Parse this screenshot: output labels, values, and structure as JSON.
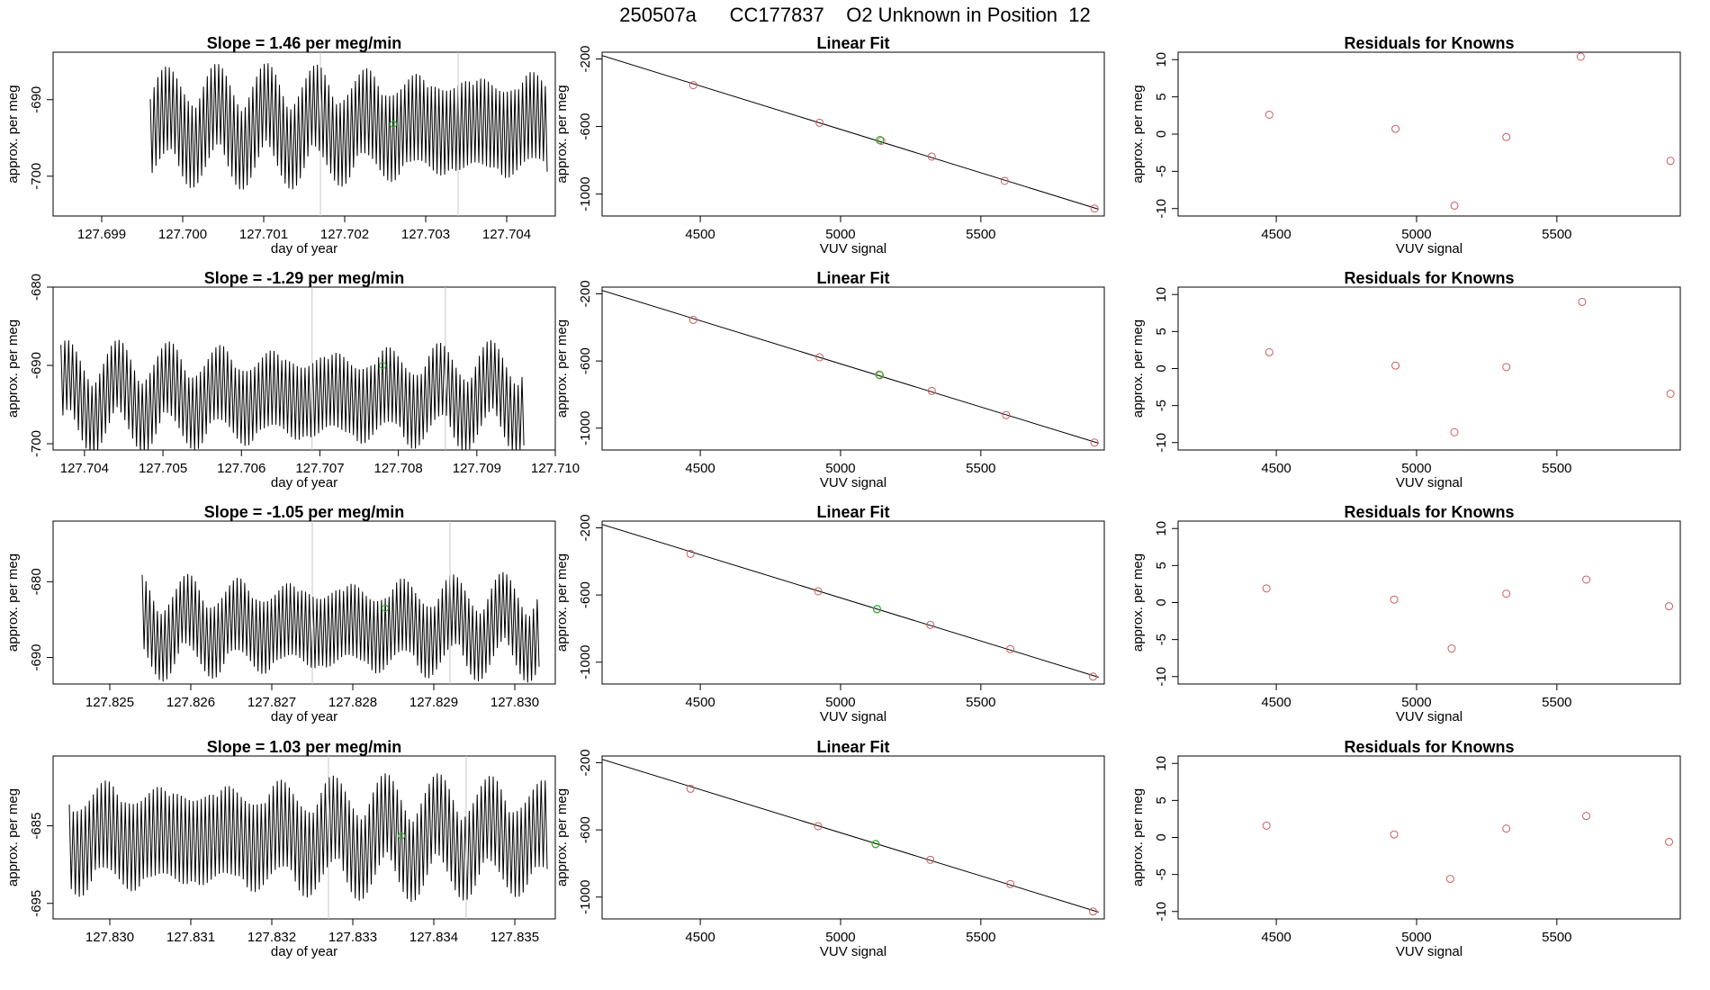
{
  "page": {
    "title": "250507a      CC177837    O2 Unknown in Position  12"
  },
  "colors": {
    "trace": "#000000",
    "unknown_point": "#2db52d",
    "known_point": "#cd5c5c",
    "fit_line": "#000000",
    "vline": "#c8c8c8"
  },
  "chart_data": [
    {
      "type": "line",
      "title": "Slope =  1.46  per meg/min",
      "xlabel": "day of year",
      "ylabel": "approx. per meg",
      "xlim": [
        127.6984,
        127.7046
      ],
      "ylim": [
        -705.2,
        -683.8
      ],
      "xticks": [
        127.699,
        127.7,
        127.701,
        127.702,
        127.703,
        127.704
      ],
      "xticklabels": [
        "127.699",
        "127.700",
        "127.701",
        "127.702",
        "127.703",
        "127.704"
      ],
      "yticks": [
        -700,
        -690
      ],
      "yticklabels": [
        "-700",
        "-690"
      ],
      "x_start": 127.6996,
      "x_end": 127.7045,
      "n": 210,
      "center": -693.5,
      "amp": 6.5,
      "vlines": [
        127.7017,
        127.7034
      ],
      "mean_point": [
        127.7026,
        -693.2
      ]
    },
    {
      "type": "line",
      "title": "Slope =  -1.29  per meg/min",
      "xlabel": "day of year",
      "ylabel": "approx. per meg",
      "xlim": [
        127.7036,
        127.71
      ],
      "ylim": [
        -700.8,
        -680.0
      ],
      "xticks": [
        127.704,
        127.705,
        127.706,
        127.707,
        127.708,
        127.709,
        127.71
      ],
      "xticklabels": [
        "127.704",
        "127.705",
        "127.706",
        "127.707",
        "127.708",
        "127.709",
        "127.710"
      ],
      "yticks": [
        -700,
        -690,
        -680
      ],
      "yticklabels": [
        "-700",
        "-690",
        "-680"
      ],
      "x_start": 127.7037,
      "x_end": 127.7096,
      "n": 240,
      "center": -694.0,
      "amp": 5.5,
      "vlines": [
        127.7069,
        127.7086
      ],
      "mean_point": [
        127.7078,
        -690.0
      ]
    },
    {
      "type": "line",
      "title": "Slope =  -1.05  per meg/min",
      "xlabel": "day of year",
      "ylabel": "approx. per meg",
      "xlim": [
        127.8243,
        127.8305
      ],
      "ylim": [
        -693.5,
        -672.0
      ],
      "xticks": [
        127.825,
        127.826,
        127.827,
        127.828,
        127.829,
        127.83
      ],
      "xticklabels": [
        "127.825",
        "127.826",
        "127.827",
        "127.828",
        "127.829",
        "127.830"
      ],
      "yticks": [
        -690,
        -680
      ],
      "yticklabels": [
        "-690",
        "-680"
      ],
      "x_start": 127.8254,
      "x_end": 127.8303,
      "n": 210,
      "center": -686.0,
      "amp": 5.5,
      "vlines": [
        127.8275,
        127.8292
      ],
      "mean_point": [
        127.8284,
        -683.5
      ]
    },
    {
      "type": "line",
      "title": "Slope =  1.03  per meg/min",
      "xlabel": "day of year",
      "ylabel": "approx. per meg",
      "xlim": [
        127.8293,
        127.8355
      ],
      "ylim": [
        -697.0,
        -676.0
      ],
      "xticks": [
        127.83,
        127.831,
        127.832,
        127.833,
        127.834,
        127.835
      ],
      "xticklabels": [
        "127.830",
        "127.831",
        "127.832",
        "127.833",
        "127.834",
        "127.835"
      ],
      "yticks": [
        -695,
        -685
      ],
      "yticklabels": [
        "-695",
        "-685"
      ],
      "x_start": 127.8295,
      "x_end": 127.8354,
      "n": 240,
      "center": -686.5,
      "amp": 6.5,
      "vlines": [
        127.8327,
        127.8344
      ],
      "mean_point": [
        127.8336,
        -686.3
      ]
    },
    {
      "type": "scatter",
      "title": "Linear Fit",
      "xlabel": "VUV signal",
      "ylabel": "approx. per meg",
      "xlim": [
        4150,
        5940
      ],
      "ylim": [
        -1130,
        -160
      ],
      "xticks": [
        4500,
        5000,
        5500
      ],
      "xticklabels": [
        "4500",
        "5000",
        "5500"
      ],
      "yticks": [
        -1000,
        -600,
        -200
      ],
      "yticklabels": [
        "-1000",
        "-600",
        "-200"
      ],
      "line": [
        [
          4150,
          -180
        ],
        [
          5920,
          -1090
        ]
      ],
      "knowns": [
        [
          4475,
          -355
        ],
        [
          4925,
          -578
        ],
        [
          5145,
          -685
        ],
        [
          5325,
          -778
        ],
        [
          5585,
          -922
        ],
        [
          5905,
          -1086
        ]
      ],
      "unknown": [
        5140,
        -680
      ]
    },
    {
      "type": "scatter",
      "title": "Linear Fit",
      "xlabel": "VUV signal",
      "ylabel": "approx. per meg",
      "xlim": [
        4150,
        5940
      ],
      "ylim": [
        -1130,
        -160
      ],
      "xticks": [
        4500,
        5000,
        5500
      ],
      "xticklabels": [
        "4500",
        "5000",
        "5500"
      ],
      "yticks": [
        -1000,
        -600,
        -200
      ],
      "yticklabels": [
        "-1000",
        "-600",
        "-200"
      ],
      "line": [
        [
          4150,
          -180
        ],
        [
          5920,
          -1090
        ]
      ],
      "knowns": [
        [
          4475,
          -355
        ],
        [
          4925,
          -578
        ],
        [
          5140,
          -685
        ],
        [
          5325,
          -778
        ],
        [
          5590,
          -922
        ],
        [
          5905,
          -1086
        ]
      ],
      "unknown": [
        5138,
        -682
      ]
    },
    {
      "type": "scatter",
      "title": "Linear Fit",
      "xlabel": "VUV signal",
      "ylabel": "approx. per meg",
      "xlim": [
        4150,
        5940
      ],
      "ylim": [
        -1130,
        -160
      ],
      "xticks": [
        4500,
        5000,
        5500
      ],
      "xticklabels": [
        "4500",
        "5000",
        "5500"
      ],
      "yticks": [
        -1000,
        -600,
        -200
      ],
      "yticklabels": [
        "-1000",
        "-600",
        "-200"
      ],
      "line": [
        [
          4150,
          -180
        ],
        [
          5920,
          -1090
        ]
      ],
      "knowns": [
        [
          4465,
          -355
        ],
        [
          4920,
          -578
        ],
        [
          5130,
          -685
        ],
        [
          5320,
          -778
        ],
        [
          5605,
          -922
        ],
        [
          5900,
          -1086
        ]
      ],
      "unknown": [
        5130,
        -684
      ]
    },
    {
      "type": "scatter",
      "title": "Linear Fit",
      "xlabel": "VUV signal",
      "ylabel": "approx. per meg",
      "xlim": [
        4150,
        5940
      ],
      "ylim": [
        -1130,
        -160
      ],
      "xticks": [
        4500,
        5000,
        5500
      ],
      "xticklabels": [
        "4500",
        "5000",
        "5500"
      ],
      "yticks": [
        -1000,
        -600,
        -200
      ],
      "yticklabels": [
        "-1000",
        "-600",
        "-200"
      ],
      "line": [
        [
          4150,
          -180
        ],
        [
          5920,
          -1090
        ]
      ],
      "knowns": [
        [
          4465,
          -355
        ],
        [
          4920,
          -578
        ],
        [
          5125,
          -685
        ],
        [
          5320,
          -778
        ],
        [
          5605,
          -922
        ],
        [
          5900,
          -1086
        ]
      ],
      "unknown": [
        5125,
        -684
      ]
    },
    {
      "type": "scatter",
      "title": "Residuals for Knowns",
      "xlabel": "VUV signal",
      "ylabel": "approx. per meg",
      "xlim": [
        4150,
        5940
      ],
      "ylim": [
        -11,
        11
      ],
      "xticks": [
        4500,
        5000,
        5500
      ],
      "xticklabels": [
        "4500",
        "5000",
        "5500"
      ],
      "yticks": [
        -10,
        -5,
        0,
        5,
        10
      ],
      "yticklabels": [
        "-10",
        "-5",
        "0",
        "5",
        "10"
      ],
      "x": [
        4475,
        4925,
        5135,
        5320,
        5585,
        5905
      ],
      "y": [
        2.6,
        0.7,
        -9.6,
        -0.4,
        10.4,
        -3.6
      ]
    },
    {
      "type": "scatter",
      "title": "Residuals for Knowns",
      "xlabel": "VUV signal",
      "ylabel": "approx. per meg",
      "xlim": [
        4150,
        5940
      ],
      "ylim": [
        -11,
        11
      ],
      "xticks": [
        4500,
        5000,
        5500
      ],
      "xticklabels": [
        "4500",
        "5000",
        "5500"
      ],
      "yticks": [
        -10,
        -5,
        0,
        5,
        10
      ],
      "yticklabels": [
        "-10",
        "-5",
        "0",
        "5",
        "10"
      ],
      "x": [
        4475,
        4925,
        5135,
        5320,
        5590,
        5905
      ],
      "y": [
        2.2,
        0.4,
        -8.6,
        0.2,
        9.0,
        -3.4
      ]
    },
    {
      "type": "scatter",
      "title": "Residuals for Knowns",
      "xlabel": "VUV signal",
      "ylabel": "approx. per meg",
      "xlim": [
        4150,
        5940
      ],
      "ylim": [
        -11,
        11
      ],
      "xticks": [
        4500,
        5000,
        5500
      ],
      "xticklabels": [
        "4500",
        "5000",
        "5500"
      ],
      "yticks": [
        -10,
        -5,
        0,
        5,
        10
      ],
      "yticklabels": [
        "-10",
        "-5",
        "0",
        "5",
        "10"
      ],
      "x": [
        4465,
        4920,
        5125,
        5320,
        5605,
        5900
      ],
      "y": [
        1.9,
        0.4,
        -6.2,
        1.2,
        3.1,
        -0.5
      ]
    },
    {
      "type": "scatter",
      "title": "Residuals for Knowns",
      "xlabel": "VUV signal",
      "ylabel": "approx. per meg",
      "xlim": [
        4150,
        5940
      ],
      "ylim": [
        -11,
        11
      ],
      "xticks": [
        4500,
        5000,
        5500
      ],
      "xticklabels": [
        "4500",
        "5000",
        "5500"
      ],
      "yticks": [
        -10,
        -5,
        0,
        5,
        10
      ],
      "yticklabels": [
        "-10",
        "-5",
        "0",
        "5",
        "10"
      ],
      "x": [
        4465,
        4920,
        5120,
        5320,
        5605,
        5900
      ],
      "y": [
        1.6,
        0.4,
        -5.6,
        1.2,
        2.9,
        -0.6
      ]
    }
  ]
}
